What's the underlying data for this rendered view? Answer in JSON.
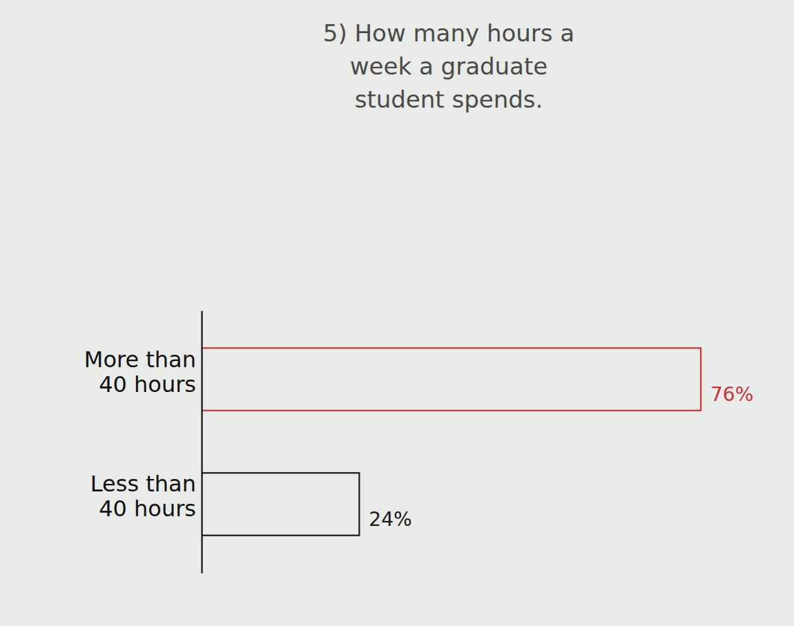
{
  "chart_data": {
    "type": "bar",
    "orientation": "horizontal",
    "title": "5) How many hours a week a graduate student spends.",
    "categories": [
      "More than 40 hours",
      "Less than 40 hours"
    ],
    "values": [
      76,
      24
    ],
    "value_labels": [
      "76%",
      "24%"
    ],
    "colors": [
      "#c8323a",
      "#1a1a1a"
    ],
    "data_labels": true,
    "tick_labels": "y",
    "grid": false
  }
}
